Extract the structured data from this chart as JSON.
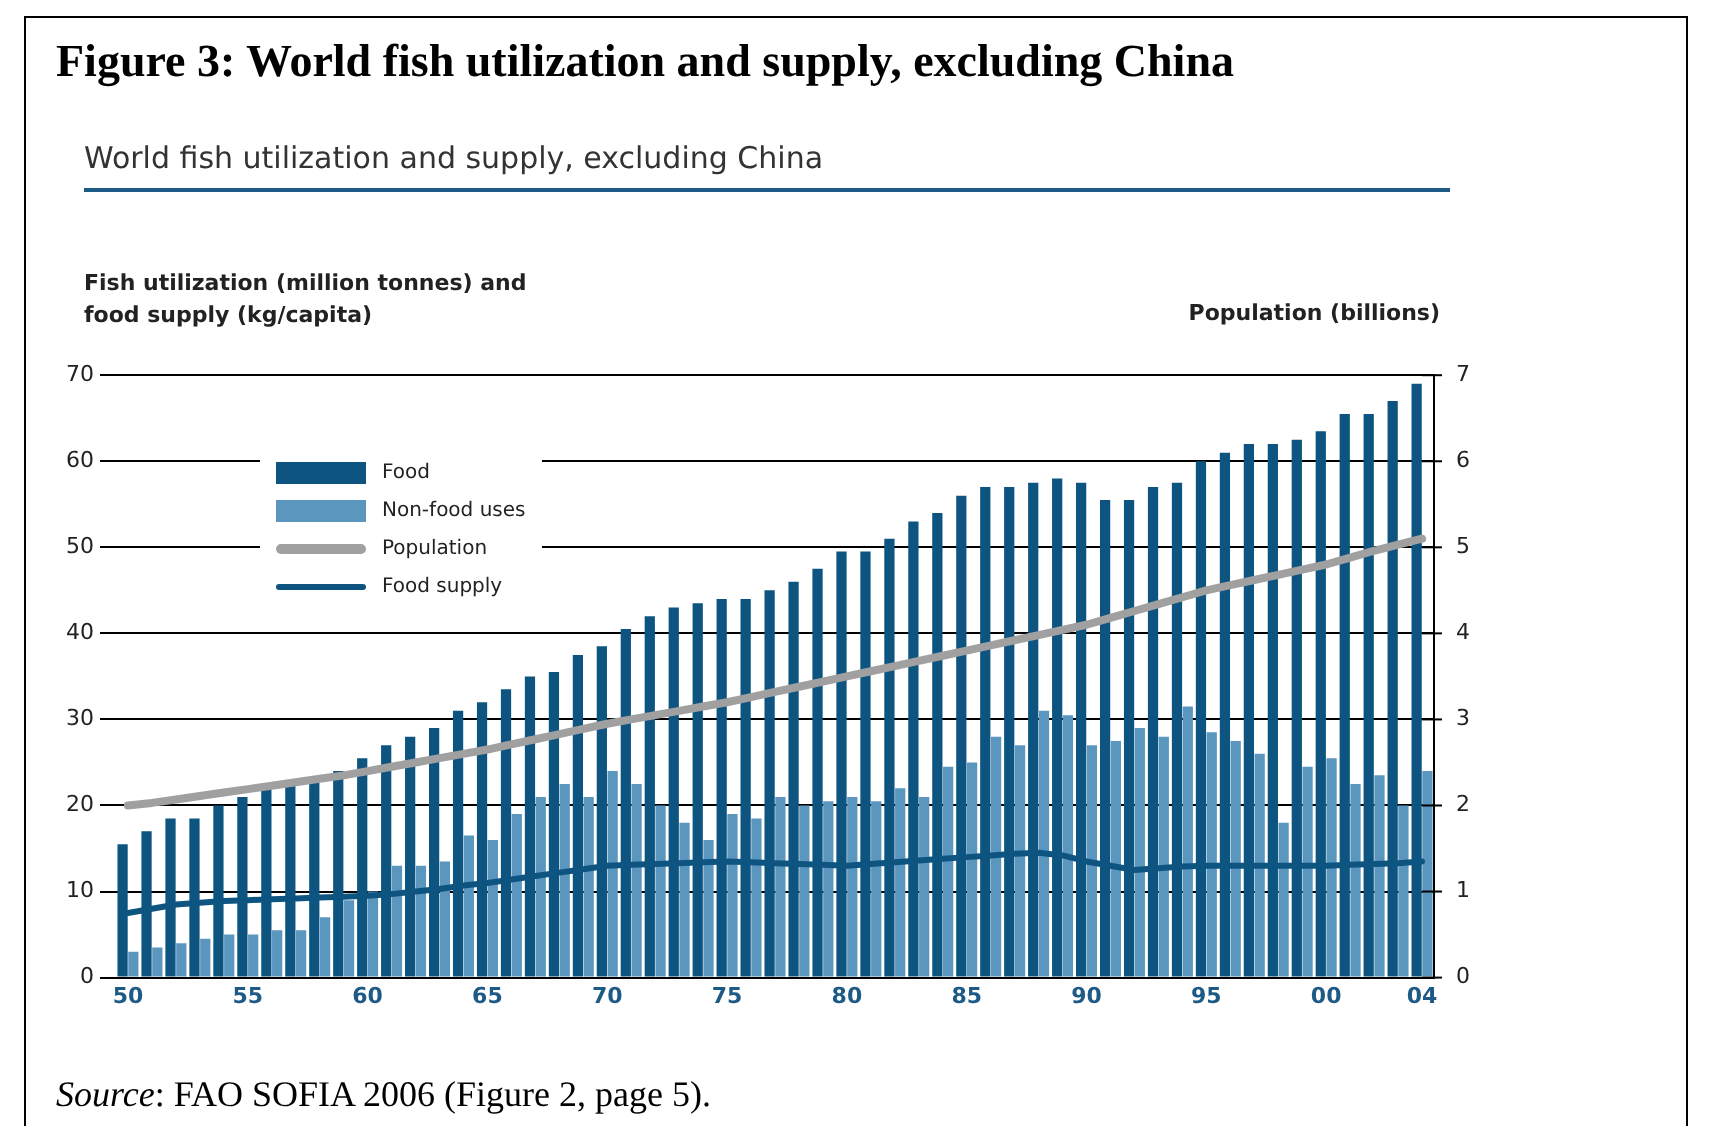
{
  "chart_data": {
    "type": "bar",
    "title": "Figure 3: World fish utilization and supply, excluding China",
    "subtitle": "World fish utilization and supply, excluding China",
    "ylabel": "Fish utilization (million tonnes) and food supply (kg/capita)",
    "y2label": "Population (billions)",
    "categories": [
      "50",
      null,
      null,
      null,
      null,
      "55",
      null,
      null,
      null,
      null,
      "60",
      null,
      null,
      null,
      null,
      "65",
      null,
      null,
      null,
      null,
      "70",
      null,
      null,
      null,
      null,
      "75",
      null,
      null,
      null,
      null,
      "80",
      null,
      null,
      null,
      null,
      "85",
      null,
      null,
      null,
      null,
      "90",
      null,
      null,
      null,
      null,
      "95",
      null,
      null,
      null,
      null,
      "00",
      null,
      null,
      null,
      "04"
    ],
    "series": [
      {
        "name": "Food",
        "color": "#0d5580",
        "values": [
          15.5,
          17,
          18.5,
          18.5,
          20,
          21,
          22,
          22.5,
          23,
          24,
          25.5,
          27,
          28,
          29,
          31,
          32,
          33.5,
          35,
          35.5,
          37.5,
          38.5,
          40.5,
          42,
          43,
          43.5,
          44,
          44,
          45,
          46,
          47.5,
          49.5,
          49.5,
          51,
          53,
          54,
          56,
          57,
          57,
          57.5,
          58,
          57.5,
          55.5,
          55.5,
          57,
          57.5,
          60,
          61,
          62,
          62,
          62.5,
          63.5,
          65.5,
          65.5,
          67,
          69
        ]
      },
      {
        "name": "Non-food uses",
        "color": "#5b96bf",
        "values": [
          3,
          3.5,
          4,
          4.5,
          5,
          5,
          5.5,
          5.5,
          7,
          9,
          10,
          13,
          13,
          13.5,
          16.5,
          16,
          19,
          21,
          22.5,
          21,
          24,
          22.5,
          20,
          18,
          16,
          19,
          18.5,
          21,
          20,
          20.5,
          21,
          20.5,
          22,
          21,
          24.5,
          25,
          28,
          27,
          31,
          30.5,
          27,
          27.5,
          29,
          28,
          31.5,
          28.5,
          27.5,
          26,
          18,
          24.5,
          25.5,
          22.5,
          23.5,
          20,
          24
        ]
      },
      {
        "name": "Population",
        "type": "line",
        "axis": "y2",
        "color": "#a0a0a0",
        "values": [
          2.0,
          2.03,
          2.07,
          2.11,
          2.15,
          2.19,
          2.23,
          2.27,
          2.31,
          2.35,
          2.4,
          2.45,
          2.5,
          2.55,
          2.6,
          2.65,
          2.71,
          2.77,
          2.83,
          2.89,
          2.95,
          3.0,
          3.05,
          3.1,
          3.15,
          3.2,
          3.26,
          3.32,
          3.38,
          3.44,
          3.5,
          3.56,
          3.62,
          3.68,
          3.74,
          3.8,
          3.86,
          3.92,
          3.98,
          4.04,
          4.1,
          4.18,
          4.26,
          4.34,
          4.42,
          4.5,
          4.56,
          4.62,
          4.68,
          4.74,
          4.8,
          4.88,
          4.96,
          5.03,
          5.1
        ]
      },
      {
        "name": "Food supply",
        "type": "line",
        "color": "#0d5580",
        "values": [
          7.5,
          8,
          8.5,
          8.7,
          8.9,
          9,
          9.1,
          9.2,
          9.3,
          9.4,
          9.5,
          9.7,
          10,
          10.3,
          10.7,
          11,
          11.4,
          11.8,
          12.2,
          12.6,
          13,
          13.1,
          13.2,
          13.3,
          13.4,
          13.5,
          13.4,
          13.3,
          13.2,
          13.1,
          13,
          13.2,
          13.4,
          13.6,
          13.8,
          14,
          14.2,
          14.4,
          14.5,
          14.2,
          13.5,
          13,
          12.5,
          12.7,
          12.9,
          13,
          13,
          13,
          13,
          13,
          13,
          13.1,
          13.2,
          13.3,
          13.5
        ]
      }
    ],
    "ylim": [
      0,
      70
    ],
    "yticks": [
      0,
      10,
      20,
      30,
      40,
      50,
      60,
      70
    ],
    "y2lim": [
      0,
      7
    ],
    "y2ticks": [
      0,
      1,
      2,
      3,
      4,
      5,
      6,
      7
    ],
    "grid": "y",
    "legend": "top left",
    "annotations": [
      "Source: FAO SOFIA 2006 (Figure 2, page 5)."
    ]
  }
}
